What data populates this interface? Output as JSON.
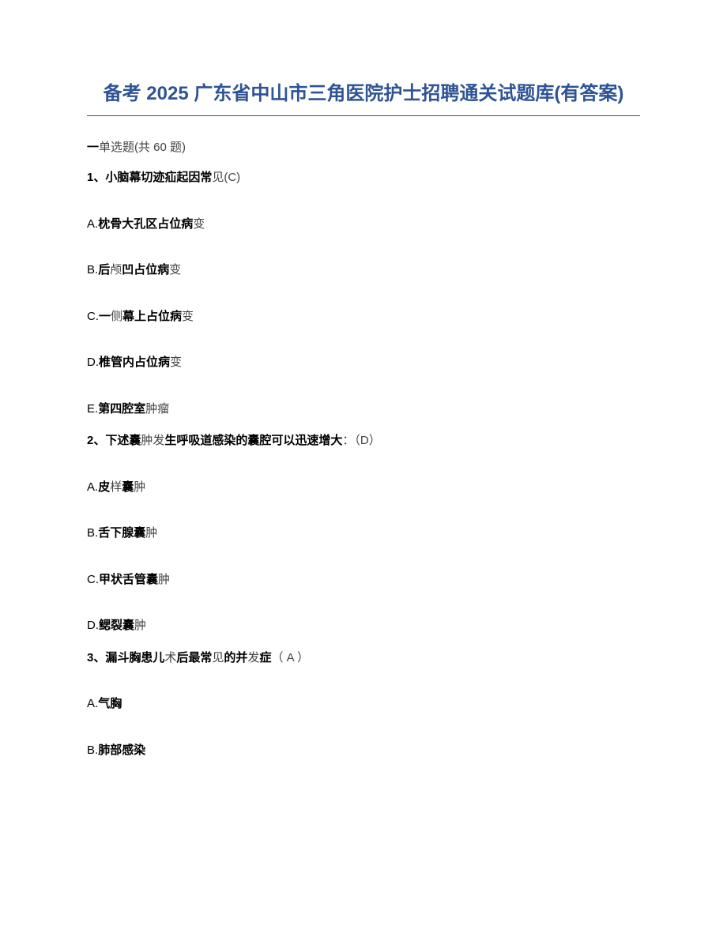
{
  "title": "备考 2025 广东省中山市三角医院护士招聘通关试题库(有答案)",
  "section": {
    "prefix": "一",
    "label_bold": "单选题(共 60 ",
    "label_light": "题)"
  },
  "questions": [
    {
      "num": "1、",
      "text_bold": "小脑幕切迹疝起因常",
      "text_light": "见(C)",
      "options": [
        {
          "prefix": "A.",
          "bold": "枕骨大孔区占位病",
          "light": "变"
        },
        {
          "prefix": "B.",
          "bold": "后",
          "light": "颅",
          "bold2": "凹占位病",
          "light2": "变"
        },
        {
          "prefix": "C.",
          "bold": "一",
          "light": "侧",
          "bold2": "幕上占位病",
          "light2": "变"
        },
        {
          "prefix": "D.",
          "bold": "椎管内占位病",
          "light": "变"
        },
        {
          "prefix": "E.",
          "bold": "第四腔室",
          "light": "肿瘤"
        }
      ]
    },
    {
      "num": "2、",
      "text_bold": "下述囊",
      "text_light": "肿发",
      "text_bold2": "生呼吸道感染的囊腔可以迅速增大",
      "text_light2": "：（D）",
      "options": [
        {
          "prefix": "A.",
          "bold": "皮",
          "light": "样",
          "bold2": "囊",
          "light2": "肿"
        },
        {
          "prefix": "B.",
          "bold": "舌下腺囊",
          "light": "肿"
        },
        {
          "prefix": "C.",
          "bold": "甲状舌管囊",
          "light": "肿"
        },
        {
          "prefix": "D.",
          "bold": "鳃裂囊",
          "light": "肿"
        }
      ]
    },
    {
      "num": "3、",
      "text_bold": "漏斗胸患儿",
      "text_light": "术",
      "text_bold2": "后最常",
      "text_light2": "见",
      "text_bold3": "的并",
      "text_light3": "发",
      "text_bold4": "症",
      "text_light4": "（ A ）",
      "options": [
        {
          "prefix": "A.",
          "bold": "气胸",
          "light": ""
        },
        {
          "prefix": "B.",
          "bold": "肺部感染",
          "light": ""
        }
      ]
    }
  ]
}
